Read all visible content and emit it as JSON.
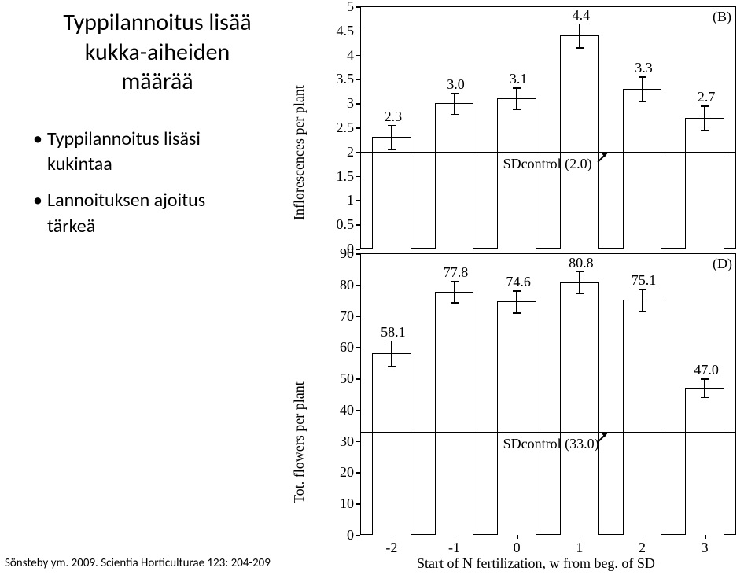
{
  "title_line1": "Typpilannoitus lisää",
  "title_line2": "kukka-aiheiden",
  "title_line3": "määrää",
  "bullet1_line1": "Typpilannoitus lisäsi",
  "bullet1_line2": "kukintaa",
  "bullet2_line1": "Lannoituksen ajoitus",
  "bullet2_line2": "tärkeä",
  "citation": "Sönsteby ym. 2009. Scientia Horticulturae 123: 204-209",
  "xlabel": "Start of N fertilization, w from beg. of SD",
  "panelB": {
    "letter": "(B)",
    "ylabel": "Inflorescences per plant",
    "ylim": [
      0,
      5
    ],
    "ytick_step": 0.5,
    "yticks": [
      "0",
      "0.5",
      "1",
      "1.5",
      "2",
      "2.5",
      "3",
      "3.5",
      "4",
      "4.5",
      "5"
    ],
    "categories": [
      "-2",
      "-1",
      "0",
      "1",
      "2",
      "3"
    ],
    "values": [
      2.3,
      3.0,
      3.1,
      4.4,
      3.3,
      2.7
    ],
    "errors": [
      0.25,
      0.22,
      0.22,
      0.25,
      0.25,
      0.25
    ],
    "ref_value": 2.0,
    "ref_label": "SDcontrol (2.0)",
    "bar_color": "#ffffff",
    "border_color": "#000000",
    "label_fontsize": 18
  },
  "panelD": {
    "letter": "(D)",
    "ylabel": "Tot. flowers per plant",
    "ylim": [
      0,
      90
    ],
    "ytick_step": 10,
    "yticks": [
      "0",
      "10",
      "20",
      "30",
      "40",
      "50",
      "60",
      "70",
      "80",
      "90"
    ],
    "categories": [
      "-2",
      "-1",
      "0",
      "1",
      "2",
      "3"
    ],
    "values": [
      58.1,
      77.8,
      74.6,
      80.8,
      75.1,
      47.0
    ],
    "errors": [
      4.0,
      3.5,
      3.5,
      3.5,
      3.5,
      3.0
    ],
    "ref_value": 33.0,
    "ref_label": "SDcontrol (33.0)",
    "bar_color": "#ffffff",
    "border_color": "#000000",
    "label_fontsize": 18
  }
}
